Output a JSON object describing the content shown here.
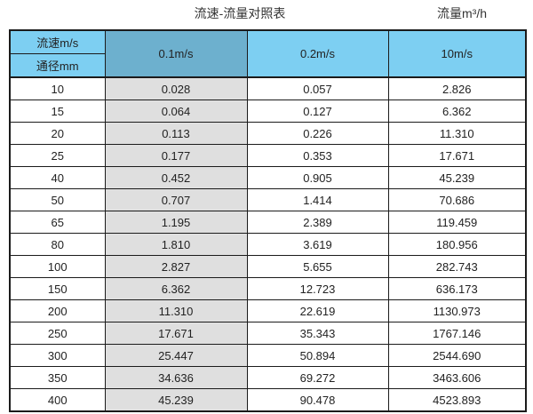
{
  "title": {
    "main": "流速-流量对照表",
    "unit": "流量m³/h"
  },
  "table": {
    "header": {
      "speed_label": "流速m/s",
      "diameter_label": "通径mm",
      "columns": [
        "0.1m/s",
        "0.2m/s",
        "10m/s"
      ]
    },
    "rows": [
      [
        "10",
        "0.028",
        "0.057",
        "2.826"
      ],
      [
        "15",
        "0.064",
        "0.127",
        "6.362"
      ],
      [
        "20",
        "0.113",
        "0.226",
        "11.310"
      ],
      [
        "25",
        "0.177",
        "0.353",
        "17.671"
      ],
      [
        "40",
        "0.452",
        "0.905",
        "45.239"
      ],
      [
        "50",
        "0.707",
        "1.414",
        "70.686"
      ],
      [
        "65",
        "1.195",
        "2.389",
        "119.459"
      ],
      [
        "80",
        "1.810",
        "3.619",
        "180.956"
      ],
      [
        "100",
        "2.827",
        "5.655",
        "282.743"
      ],
      [
        "150",
        "6.362",
        "12.723",
        "636.173"
      ],
      [
        "200",
        "11.310",
        "22.619",
        "1130.973"
      ],
      [
        "250",
        "17.671",
        "35.343",
        "1767.146"
      ],
      [
        "300",
        "25.447",
        "50.894",
        "2544.690"
      ],
      [
        "350",
        "34.636",
        "69.272",
        "3463.606"
      ],
      [
        "400",
        "45.239",
        "90.478",
        "4523.893"
      ]
    ]
  },
  "colors": {
    "header_blue": "#7DCFF2",
    "header_blue_dark": "#6DB0CE",
    "column_gray": "#DFDFDF",
    "border": "#1B1B1B"
  },
  "chart_data": {
    "type": "table",
    "title": "流速-流量对照表",
    "unit_label": "流量m³/h",
    "row_axis_label": "通径mm",
    "col_axis_label": "流速m/s",
    "categories": [
      10,
      15,
      20,
      25,
      40,
      50,
      65,
      80,
      100,
      150,
      200,
      250,
      300,
      350,
      400
    ],
    "series": [
      {
        "name": "0.1m/s",
        "values": [
          0.028,
          0.064,
          0.113,
          0.177,
          0.452,
          0.707,
          1.195,
          1.81,
          2.827,
          6.362,
          11.31,
          17.671,
          25.447,
          34.636,
          45.239
        ]
      },
      {
        "name": "0.2m/s",
        "values": [
          0.057,
          0.127,
          0.226,
          0.353,
          0.905,
          1.414,
          2.389,
          3.619,
          5.655,
          12.723,
          22.619,
          35.343,
          50.894,
          69.272,
          90.478
        ]
      },
      {
        "name": "10m/s",
        "values": [
          2.826,
          6.362,
          11.31,
          17.671,
          45.239,
          70.686,
          119.459,
          180.956,
          282.743,
          636.173,
          1130.973,
          1767.146,
          2544.69,
          3463.606,
          4523.893
        ]
      }
    ]
  }
}
